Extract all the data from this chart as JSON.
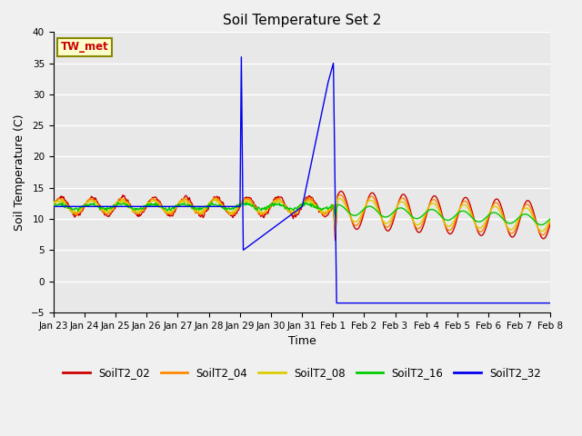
{
  "title": "Soil Temperature Set 2",
  "xlabel": "Time",
  "ylabel": "Soil Temperature (C)",
  "ylim": [
    -5,
    40
  ],
  "yticks": [
    -5,
    0,
    5,
    10,
    15,
    20,
    25,
    30,
    35,
    40
  ],
  "annotation_text": "TW_met",
  "series_colors": {
    "SoilT2_02": "#cc0000",
    "SoilT2_04": "#ff8800",
    "SoilT2_08": "#ddcc00",
    "SoilT2_16": "#00cc00",
    "SoilT2_32": "#0000ee"
  },
  "bg_color": "#e8e8e8",
  "grid_color": "#ffffff",
  "fig_bg": "#f0f0f0"
}
